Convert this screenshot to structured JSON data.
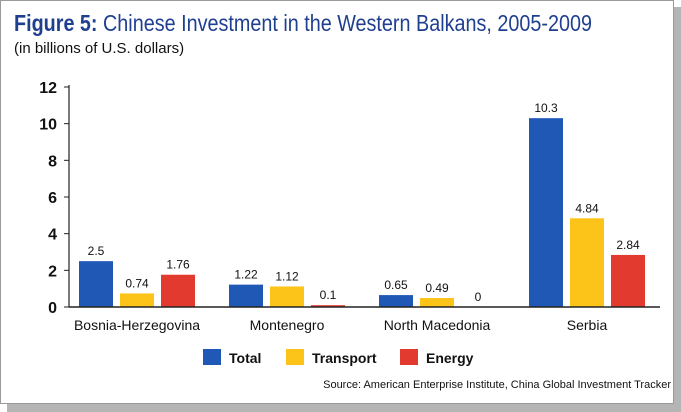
{
  "header": {
    "title_prefix": "Figure 5:",
    "title_text": "Chinese Investment in the Western Balkans, 2005-2009",
    "subtitle": "(in billions of U.S. dollars)"
  },
  "source": "Source: American Enterprise Institute, China Global Investment Tracker",
  "colors": {
    "title": "#1f3f8f",
    "Total": "#2058b5",
    "Transport": "#fcc419",
    "Energy": "#e23a2e"
  },
  "chart_data": {
    "type": "bar",
    "title": "Figure 5: Chinese Investment in the Western Balkans, 2005-2009",
    "subtitle": "(in billions of U.S. dollars)",
    "categories": [
      "Bosnia-Herzegovina",
      "Montenegro",
      "North Macedonia",
      "Serbia"
    ],
    "series": [
      {
        "name": "Total",
        "values": [
          2.5,
          1.22,
          0.65,
          10.3
        ]
      },
      {
        "name": "Transport",
        "values": [
          0.74,
          1.12,
          0.49,
          4.84
        ]
      },
      {
        "name": "Energy",
        "values": [
          1.76,
          0.1,
          0,
          2.84
        ]
      }
    ],
    "data_labels": [
      [
        "2.5",
        "1.22",
        "0.65",
        "10.3"
      ],
      [
        "0.74",
        "1.12",
        "0.49",
        "4.84"
      ],
      [
        "1.76",
        "0.1",
        "0",
        "2.84"
      ]
    ],
    "ylim": [
      0,
      12
    ],
    "yticks": [
      0,
      2,
      4,
      6,
      8,
      10,
      12
    ],
    "xlabel": "",
    "ylabel": "",
    "grid": false,
    "legend": "bottom-center"
  }
}
